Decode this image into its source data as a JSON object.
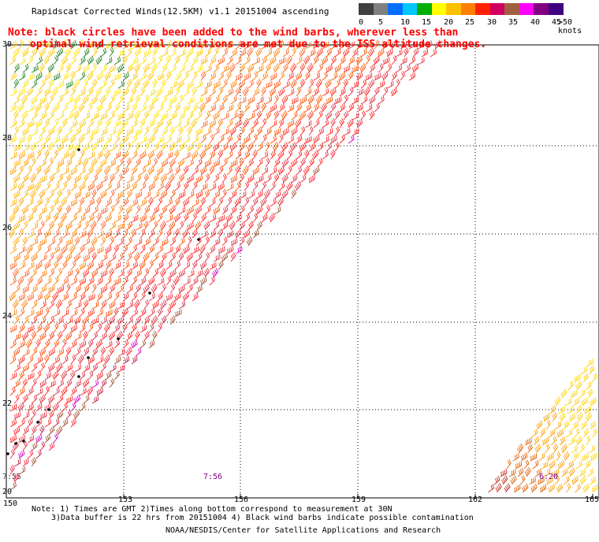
{
  "title": "Rapidscat Corrected Winds(12.5KM) v1.1 20151004 ascending",
  "note_line1": "Note: black circles have been added to the wind barbs, wherever less than",
  "note_line2": "optimal wind retrieval conditions are met due to the ISS altitude changes.",
  "scale": {
    "labels": [
      "0",
      "5",
      "10",
      "15",
      "20",
      "25",
      "30",
      "35",
      "40",
      "45",
      ">50 knots"
    ],
    "colors": [
      "#404040",
      "#808080",
      "#0070ff",
      "#00c8ff",
      "#00b000",
      "#ffff00",
      "#ffc000",
      "#ff8000",
      "#ff2000",
      "#d00060",
      "#a06040",
      "#ff00ff",
      "#800080",
      "#400080"
    ]
  },
  "lon_ticks": [
    "150",
    "153",
    "156",
    "159",
    "162",
    "165"
  ],
  "lat_ticks": [
    "20",
    "22",
    "24",
    "26",
    "28",
    "30"
  ],
  "time_labels": [
    "7:55",
    "7:56",
    "6:20"
  ],
  "footer_line1": "Note: 1) Times are GMT 2)Times along bottom correspond to measurement at 30N",
  "footer_line2": "3)Data buffer is 22 hrs from 20151004 4) Black wind barbs indicate possible contamination",
  "footer_line3": "NOAA/NESDIS/Center for Satellite Applications and Research"
}
